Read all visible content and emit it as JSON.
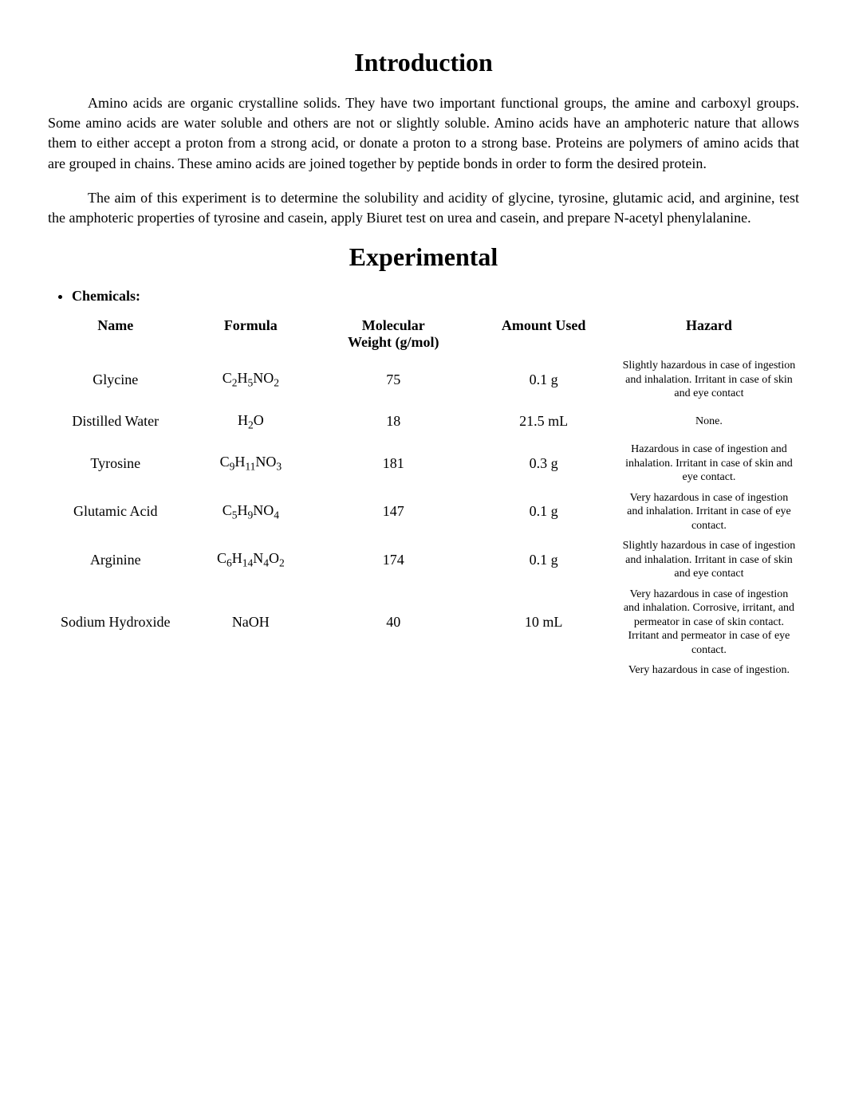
{
  "headings": {
    "introduction": "Introduction",
    "experimental": "Experimental"
  },
  "paragraphs": {
    "intro1": "Amino acids are organic crystalline solids. They have two important functional groups, the amine and carboxyl groups. Some amino acids are water soluble and others are not or slightly soluble. Amino acids have an amphoteric nature that allows them to either accept a proton from a strong acid, or donate a proton to a strong base. Proteins are polymers of amino acids that are grouped in chains. These amino acids are joined together by peptide bonds in order to form the desired protein.",
    "intro2": "The aim of this experiment is to determine the solubility and acidity of glycine, tyrosine, glutamic acid, and arginine, test the amphoteric properties of tyrosine and casein, apply Biuret test on urea and casein, and prepare N-acetyl phenylalanine."
  },
  "bullet": {
    "chemicals": "Chemicals:"
  },
  "table": {
    "headers": {
      "name": "Name",
      "formula": "Formula",
      "weight_line1": "Molecular",
      "weight_line2": "Weight (g/mol)",
      "amount": "Amount Used",
      "hazard": "Hazard"
    },
    "rows": [
      {
        "name": "Glycine",
        "formula_html": "C<span class=\"sub\">2</span>H<span class=\"sub\">5</span>NO<span class=\"sub\">2</span>",
        "weight": "75",
        "amount": "0.1 g",
        "hazard": "Slightly hazardous in case of ingestion and inhalation. Irritant in case of skin and eye contact"
      },
      {
        "name": "Distilled Water",
        "formula_html": "H<span class=\"sub\">2</span>O",
        "weight": "18",
        "amount": "21.5 mL",
        "hazard": "None."
      },
      {
        "name": "Tyrosine",
        "formula_html": "C<span class=\"sub\">9</span>H<span class=\"sub\">11</span>NO<span class=\"sub\">3</span>",
        "weight": "181",
        "amount": "0.3 g",
        "hazard": "Hazardous in case of ingestion and inhalation. Irritant in case of skin and eye contact."
      },
      {
        "name": "Glutamic Acid",
        "formula_html": "C<span class=\"sub\">5</span>H<span class=\"sub\">9</span>NO<span class=\"sub\">4</span>",
        "weight": "147",
        "amount": "0.1 g",
        "hazard": "Very hazardous in case of ingestion and inhalation. Irritant in case of eye contact."
      },
      {
        "name": "Arginine",
        "formula_html": "C<span class=\"sub\">6</span>H<span class=\"sub\">14</span>N<span class=\"sub\">4</span>O<span class=\"sub\">2</span>",
        "weight": "174",
        "amount": "0.1 g",
        "hazard": "Slightly hazardous in case of ingestion and inhalation. Irritant in case of skin and eye contact"
      },
      {
        "name": "Sodium Hydroxide",
        "formula_html": "NaOH",
        "weight": "40",
        "amount": "10 mL",
        "hazard": "Very hazardous in case of ingestion and inhalation. Corrosive, irritant, and permeator in case of skin contact. Irritant and permeator in case of eye contact."
      },
      {
        "name": "",
        "formula_html": "",
        "weight": "",
        "amount": "",
        "hazard": "Very hazardous in case of ingestion."
      }
    ]
  },
  "styles": {
    "background_color": "#ffffff",
    "text_color": "#000000",
    "heading_fontsize": 32,
    "body_fontsize": 18,
    "hazard_fontsize": 14,
    "font_family": "Times New Roman"
  }
}
